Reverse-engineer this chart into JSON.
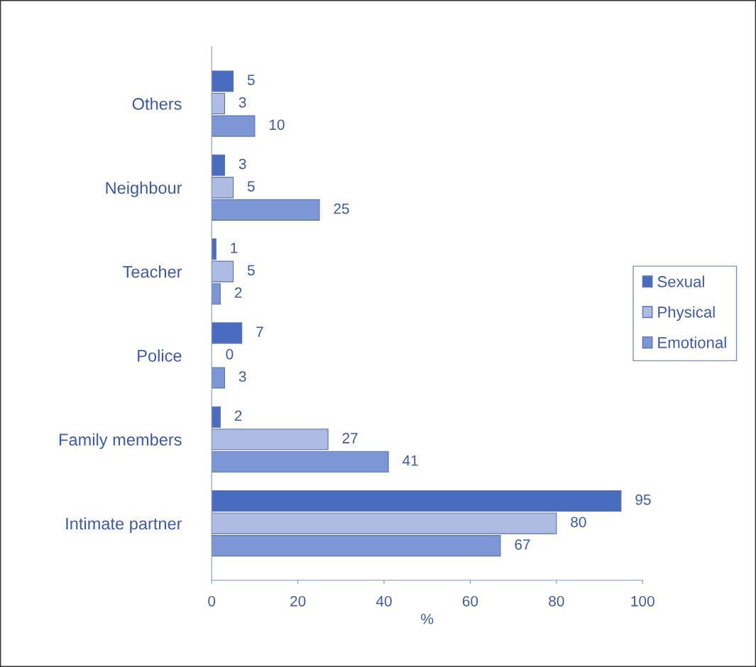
{
  "chart_data": {
    "type": "bar",
    "orientation": "horizontal",
    "categories": [
      "Others",
      "Neighbour",
      "Teacher",
      "Police",
      "Family members",
      "Intimate partner"
    ],
    "series": [
      {
        "name": "Sexual",
        "color": "#4a6cc0",
        "values": [
          5,
          3,
          1,
          7,
          2,
          95
        ]
      },
      {
        "name": "Physical",
        "color": "#aebce4",
        "values": [
          3,
          5,
          5,
          0,
          27,
          80
        ]
      },
      {
        "name": "Emotional",
        "color": "#7d96d6",
        "values": [
          10,
          25,
          2,
          3,
          41,
          67
        ]
      }
    ],
    "xlabel": "%",
    "xlim": [
      0,
      100
    ],
    "xticks": [
      0,
      20,
      40,
      60,
      80,
      100
    ],
    "data_labels": true,
    "legend": "right",
    "grid": false
  }
}
